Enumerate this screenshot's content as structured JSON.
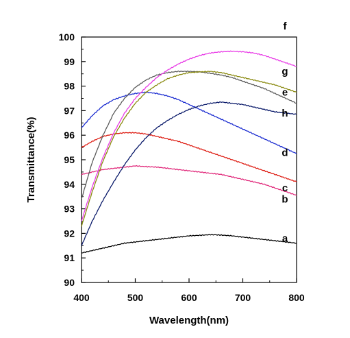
{
  "chart_data": {
    "type": "line",
    "title": "",
    "xlabel": "Wavelength(nm)",
    "ylabel": "Transmittance(%)",
    "xlim": [
      400,
      800
    ],
    "ylim": [
      90,
      100
    ],
    "x_ticks": [
      400,
      500,
      600,
      700,
      800
    ],
    "y_ticks": [
      90,
      91,
      92,
      93,
      94,
      95,
      96,
      97,
      98,
      99,
      100
    ],
    "x_minor_step": 50,
    "y_minor_step": 0.5,
    "grid": false,
    "legend": "inline labels at right end of curves",
    "x": [
      400,
      420,
      440,
      460,
      480,
      500,
      520,
      540,
      560,
      580,
      600,
      620,
      640,
      660,
      680,
      700,
      720,
      740,
      760,
      780,
      800
    ],
    "series": [
      {
        "name": "a",
        "color": "#000000",
        "values": [
          91.2,
          91.3,
          91.4,
          91.5,
          91.6,
          91.65,
          91.7,
          91.75,
          91.8,
          91.85,
          91.9,
          91.92,
          91.95,
          91.93,
          91.9,
          91.85,
          91.8,
          91.75,
          91.7,
          91.65,
          91.6
        ]
      },
      {
        "name": "b",
        "color": "#e0287a",
        "values": [
          94.4,
          94.5,
          94.6,
          94.65,
          94.7,
          94.75,
          94.72,
          94.7,
          94.65,
          94.6,
          94.55,
          94.5,
          94.45,
          94.4,
          94.3,
          94.2,
          94.1,
          94.0,
          93.85,
          93.7,
          93.55
        ]
      },
      {
        "name": "c",
        "color": "#dd1a10",
        "values": [
          95.5,
          95.75,
          95.95,
          96.05,
          96.1,
          96.1,
          96.05,
          95.95,
          95.85,
          95.75,
          95.6,
          95.45,
          95.3,
          95.15,
          95.0,
          94.85,
          94.7,
          94.55,
          94.4,
          94.25,
          94.1
        ]
      },
      {
        "name": "d",
        "color": "#1a2bd0",
        "values": [
          96.3,
          96.8,
          97.2,
          97.45,
          97.6,
          97.7,
          97.75,
          97.7,
          97.6,
          97.45,
          97.25,
          97.05,
          96.85,
          96.65,
          96.45,
          96.25,
          96.05,
          95.85,
          95.65,
          95.45,
          95.25
        ]
      },
      {
        "name": "e",
        "color": "#5a5a5a",
        "values": [
          93.4,
          94.9,
          96.0,
          96.9,
          97.5,
          97.95,
          98.25,
          98.45,
          98.55,
          98.6,
          98.6,
          98.58,
          98.52,
          98.45,
          98.35,
          98.2,
          98.05,
          97.9,
          97.7,
          97.5,
          97.3
        ]
      },
      {
        "name": "f",
        "color": "#e83ae6",
        "values": [
          92.5,
          93.9,
          95.1,
          96.1,
          96.9,
          97.5,
          97.95,
          98.35,
          98.65,
          98.9,
          99.1,
          99.25,
          99.35,
          99.4,
          99.42,
          99.4,
          99.35,
          99.25,
          99.1,
          98.95,
          98.8
        ]
      },
      {
        "name": "g",
        "color": "#8a8a10",
        "values": [
          92.3,
          93.7,
          94.95,
          95.95,
          96.7,
          97.3,
          97.75,
          98.05,
          98.3,
          98.45,
          98.55,
          98.58,
          98.6,
          98.55,
          98.45,
          98.35,
          98.25,
          98.15,
          98.05,
          97.9,
          97.75
        ]
      },
      {
        "name": "h",
        "color": "#0a1a6a",
        "values": [
          91.5,
          92.5,
          93.35,
          94.1,
          94.8,
          95.4,
          95.9,
          96.3,
          96.6,
          96.85,
          97.05,
          97.2,
          97.3,
          97.35,
          97.3,
          97.25,
          97.15,
          97.05,
          96.95,
          96.9,
          96.85
        ]
      }
    ],
    "label_order": [
      "f",
      "g",
      "e",
      "h",
      "d",
      "c",
      "b",
      "a"
    ]
  }
}
